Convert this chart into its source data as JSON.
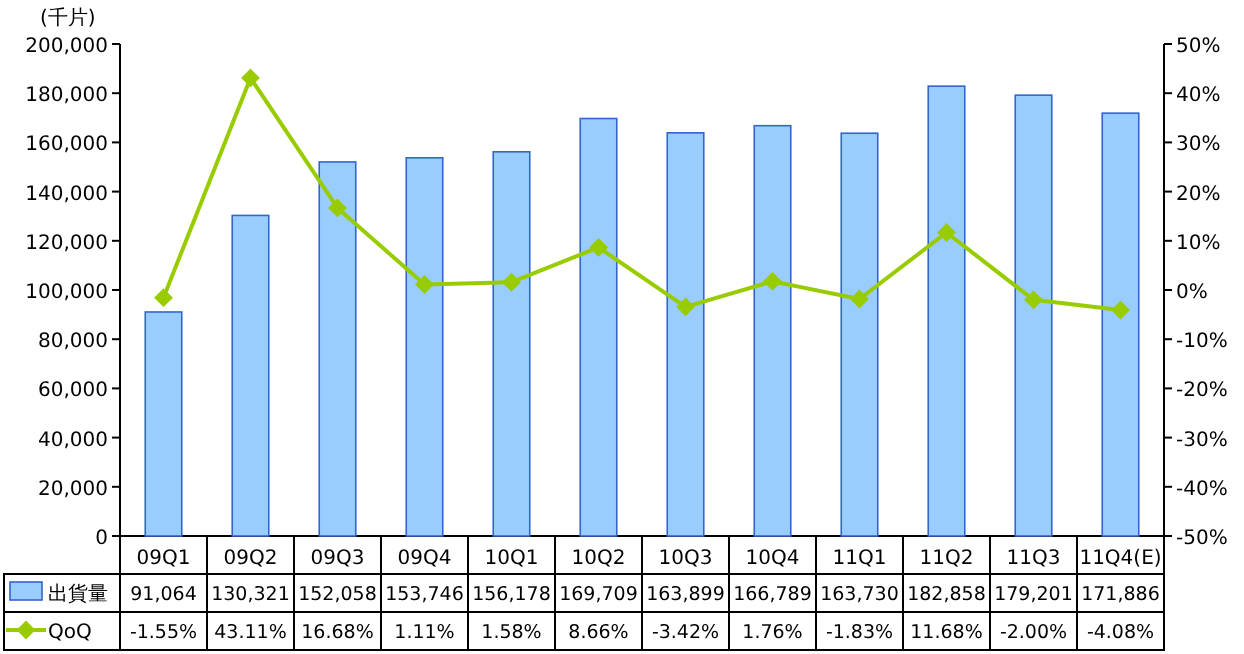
{
  "chart_data": {
    "type": "bar",
    "ylabel": "(千片)",
    "legend": "bottom",
    "marker": "diamond",
    "categories": [
      "09Q1",
      "09Q2",
      "09Q3",
      "09Q4",
      "10Q1",
      "10Q2",
      "10Q3",
      "10Q4",
      "11Q1",
      "11Q2",
      "11Q3",
      "11Q4(E)"
    ],
    "ylim": [
      0,
      200000
    ],
    "yticks": [
      {
        "value": 0,
        "label": "0"
      },
      {
        "value": 20000,
        "label": "20,000"
      },
      {
        "value": 40000,
        "label": "40,000"
      },
      {
        "value": 60000,
        "label": "60,000"
      },
      {
        "value": 80000,
        "label": "80,000"
      },
      {
        "value": 100000,
        "label": "100,000"
      },
      {
        "value": 120000,
        "label": "120,000"
      },
      {
        "value": 140000,
        "label": "140,000"
      },
      {
        "value": 160000,
        "label": "160,000"
      },
      {
        "value": 180000,
        "label": "180,000"
      },
      {
        "value": 200000,
        "label": "200,000"
      }
    ],
    "y2lim": [
      -50,
      50
    ],
    "y2ticks": [
      {
        "value": -50,
        "label": "-50%"
      },
      {
        "value": -40,
        "label": "-40%"
      },
      {
        "value": -30,
        "label": "-30%"
      },
      {
        "value": -20,
        "label": "-20%"
      },
      {
        "value": -10,
        "label": "-10%"
      },
      {
        "value": 0,
        "label": "0%"
      },
      {
        "value": 10,
        "label": "10%"
      },
      {
        "value": 20,
        "label": "20%"
      },
      {
        "value": 30,
        "label": "30%"
      },
      {
        "value": 40,
        "label": "40%"
      },
      {
        "value": 50,
        "label": "50%"
      }
    ],
    "series": [
      {
        "name": "出貨量",
        "color": "#99ccff",
        "values": [
          91064,
          130321,
          152058,
          153746,
          156178,
          169709,
          163899,
          166789,
          163730,
          182858,
          179201,
          171886
        ],
        "value_labels": [
          "91,064",
          "130,321",
          "152,058",
          "153,746",
          "156,178",
          "169,709",
          "163,899",
          "166,789",
          "163,730",
          "182,858",
          "179,201",
          "171,886"
        ]
      },
      {
        "name": "QoQ",
        "type": "line",
        "axis": "y2",
        "color": "#99cc00",
        "values": [
          -1.55,
          43.11,
          16.68,
          1.11,
          1.58,
          8.66,
          -3.42,
          1.76,
          -1.83,
          11.68,
          -2.0,
          -4.08
        ],
        "value_labels": [
          "-1.55%",
          "43.11%",
          "16.68%",
          "1.11%",
          "1.58%",
          "8.66%",
          "-3.42%",
          "1.76%",
          "-1.83%",
          "11.68%",
          "-2.00%",
          "-4.08%"
        ]
      }
    ]
  }
}
